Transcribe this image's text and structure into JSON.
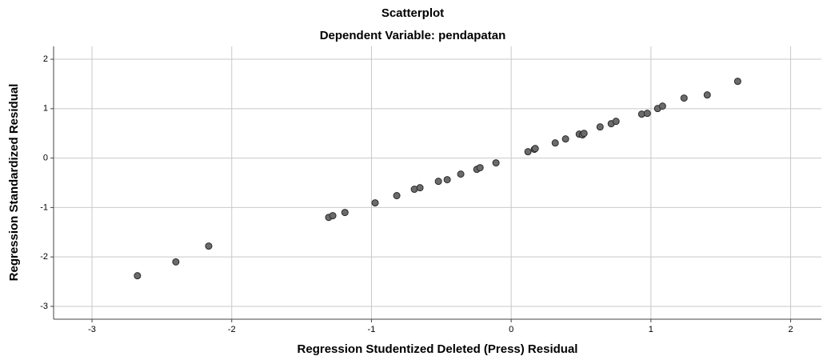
{
  "chart_data": {
    "type": "scatter",
    "title": "Scatterplot",
    "subtitle": "Dependent Variable: pendapatan",
    "x_label": "Regression Studentized Deleted (Press) Residual",
    "y_label": "Regression Standardized Residual",
    "x": [
      -2.675,
      -2.4,
      -2.165,
      -1.306,
      -1.277,
      -1.19,
      -0.974,
      -0.819,
      -0.693,
      -0.653,
      -0.521,
      -0.458,
      -0.361,
      -0.246,
      -0.223,
      -0.109,
      0.12,
      0.166,
      0.172,
      0.315,
      0.389,
      0.487,
      0.51,
      0.521,
      0.636,
      0.716,
      0.75,
      0.934,
      0.974,
      1.048,
      1.083,
      1.237,
      1.403,
      1.621
    ],
    "y": [
      -2.38,
      -2.1,
      -1.78,
      -1.2,
      -1.165,
      -1.1,
      -0.906,
      -0.76,
      -0.63,
      -0.6,
      -0.47,
      -0.437,
      -0.324,
      -0.227,
      -0.194,
      -0.097,
      0.129,
      0.178,
      0.194,
      0.307,
      0.388,
      0.485,
      0.47,
      0.5,
      0.631,
      0.696,
      0.744,
      0.89,
      0.906,
      1.003,
      1.052,
      1.214,
      1.278,
      1.553
    ],
    "color": "#6b6b6b",
    "xlim": [
      -3.275,
      2.22
    ],
    "ylim": [
      -3.26,
      2.26
    ],
    "xticks": [
      -3,
      -2,
      -1,
      0,
      1,
      2
    ],
    "yticks": [
      -3,
      -2,
      -1,
      0,
      1,
      2
    ],
    "grid": true
  }
}
